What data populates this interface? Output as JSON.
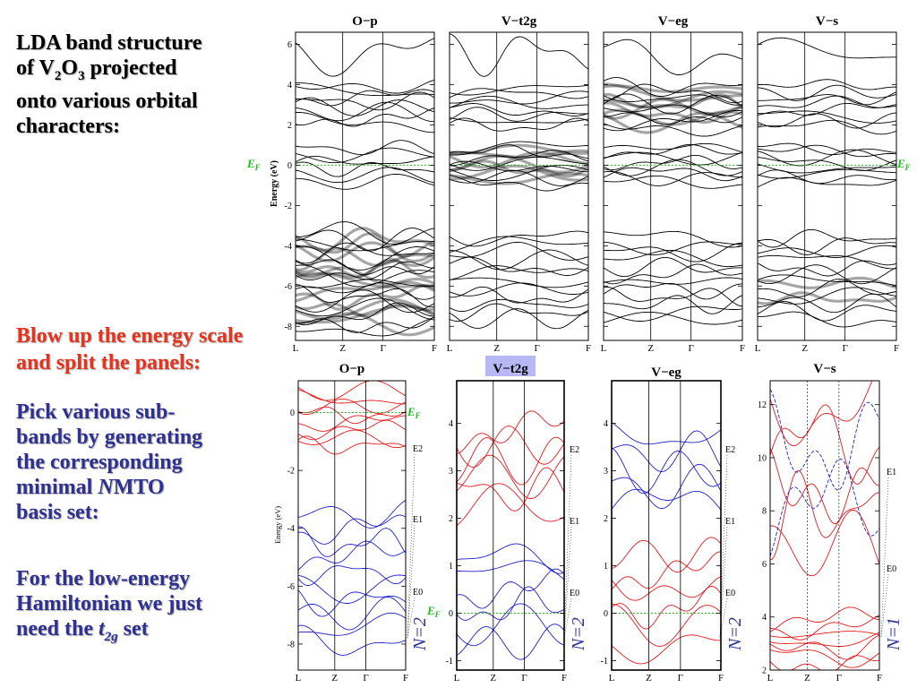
{
  "slide": {
    "title": {
      "line1": "LDA band structure",
      "line2a": "of V",
      "sub1": "2",
      "line2b": "O",
      "sub2": "3",
      "line2c": " projected",
      "line3": "onto various orbital",
      "line4": "characters:"
    },
    "blowup": {
      "line1": "Blow up the energy scale",
      "line2": "and split the panels:"
    },
    "pick": {
      "line1": "Pick various sub-",
      "line2": "bands by generating",
      "line3": "the corresponding",
      "line4": "minimal ",
      "nmto_n": "N",
      "line4b": "MTO",
      "line5": "basis set:"
    },
    "lowenergy": {
      "line1": "For the low-energy",
      "line2": "Hamiltonian we just",
      "line3a": "need the ",
      "t": "t",
      "tsub": "2g",
      "line3b": " set"
    }
  },
  "labels": {
    "ef": "E",
    "ef_sub": "F",
    "ylabel": "Energy (eV)",
    "kpoints": [
      "L",
      "Z",
      "Γ",
      "F"
    ],
    "e_labels": [
      "E2",
      "E1",
      "E0"
    ]
  },
  "top_panels": [
    {
      "title": "O−p",
      "yticks": [
        "6",
        "4",
        "2",
        "0",
        "-2",
        "-4",
        "-6",
        "-8"
      ]
    },
    {
      "title": "V−t2g",
      "yticks": []
    },
    {
      "title": "V−eg",
      "yticks": []
    },
    {
      "title": "V−s",
      "yticks": []
    }
  ],
  "bottom_panels": [
    {
      "title": "O−p",
      "n_label": "N=2",
      "yticks": [
        "0",
        "-2",
        "-4",
        "-6",
        "-8"
      ]
    },
    {
      "title": "V−t2g",
      "n_label": "N=2",
      "yticks": [
        "4",
        "3",
        "2",
        "1",
        "0",
        "-1"
      ]
    },
    {
      "title": "V−eg",
      "n_label": "N=2",
      "yticks": [
        "4",
        "3",
        "2",
        "1",
        "0",
        "-1"
      ]
    },
    {
      "title": "V−s",
      "n_label": "N=1",
      "yticks": [
        "12",
        "10",
        "8",
        "6",
        "4",
        "2"
      ]
    }
  ],
  "colors": {
    "text_red": "#e8321e",
    "text_blue": "#2f3192",
    "band_red": "#e41a1c",
    "band_blue": "#2020c8",
    "fermi_green": "#22bb22",
    "highlight": "#b8b8f5"
  }
}
